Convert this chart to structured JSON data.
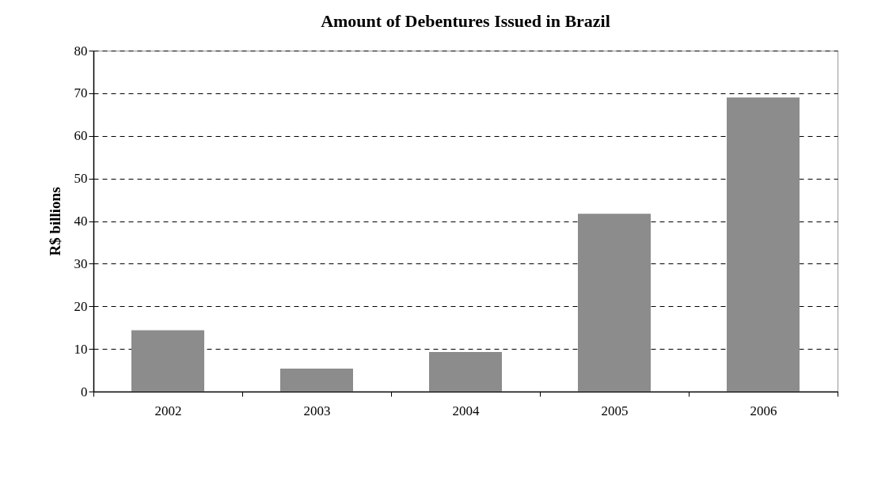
{
  "chart_data": {
    "type": "bar",
    "title": "Amount of Debentures Issued in Brazil",
    "ylabel": "R$ billions",
    "categories": [
      "2002",
      "2003",
      "2004",
      "2005",
      "2006"
    ],
    "values": [
      14.4,
      5.4,
      9.3,
      41.7,
      69.0
    ],
    "color": "#8c8c8c",
    "ylim": [
      0,
      80
    ],
    "yticks": [
      0,
      10,
      20,
      30,
      40,
      50,
      60,
      70,
      80
    ],
    "grid": "y"
  }
}
